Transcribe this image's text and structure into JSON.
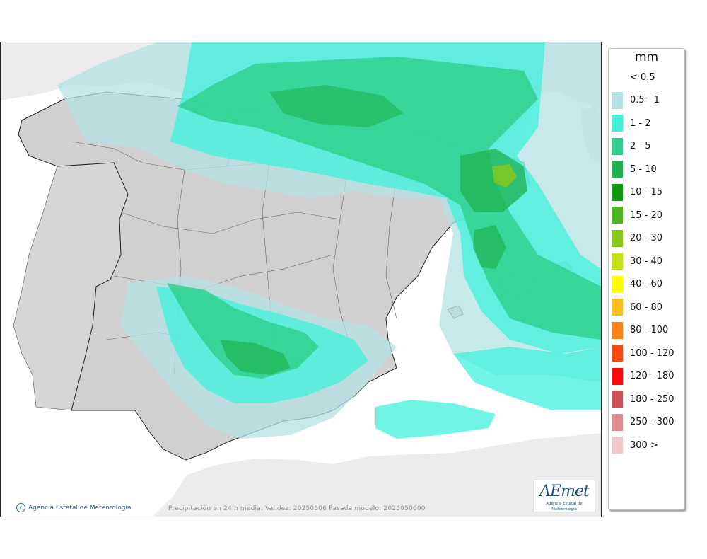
{
  "map": {
    "credit": "Agencia Estatal de Meteorología",
    "caption": "Precipitación en 24 h media. Validez: 20250506 Pasada modelo: 2025050600",
    "logo": {
      "mark": "AEmet",
      "subtitle": "Agencia Estatal de Meteorología"
    }
  },
  "legend": {
    "unit": "mm",
    "items": [
      {
        "label": "< 0.5",
        "color": ""
      },
      {
        "label": "0.5 - 1",
        "color": "#b4e1e6"
      },
      {
        "label": "1 - 2",
        "color": "#3ff0dc"
      },
      {
        "label": "2 - 5",
        "color": "#2ed08a"
      },
      {
        "label": "5 - 10",
        "color": "#1eb24e"
      },
      {
        "label": "10 - 15",
        "color": "#109a12"
      },
      {
        "label": "15 - 20",
        "color": "#4cb41c"
      },
      {
        "label": "20 - 30",
        "color": "#84c81a"
      },
      {
        "label": "30 - 40",
        "color": "#c6e018"
      },
      {
        "label": "40 - 60",
        "color": "#fffc00"
      },
      {
        "label": "60 - 80",
        "color": "#fcbc1c"
      },
      {
        "label": "80 - 100",
        "color": "#fc8018"
      },
      {
        "label": "100 - 120",
        "color": "#fc4a12"
      },
      {
        "label": "120 - 180",
        "color": "#fc0a0a"
      },
      {
        "label": "180 - 250",
        "color": "#cc5054"
      },
      {
        "label": "250 - 300",
        "color": "#de8c90"
      },
      {
        "label": "300 >",
        "color": "#f0c8c8"
      }
    ]
  }
}
